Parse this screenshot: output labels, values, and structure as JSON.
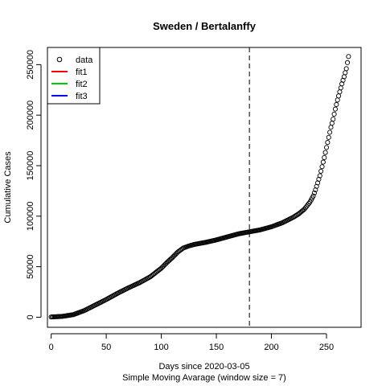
{
  "chart_data": {
    "type": "scatter",
    "title": "Sweden / Bertalanffy",
    "xlabel": "Days since 2020-03-05",
    "xsublabel": "Simple Moving Avarage (window size = 7)",
    "ylabel": "Cumulative Cases",
    "xlim": [
      -3.4,
      281.4
    ],
    "ylim": [
      -10000,
      267000
    ],
    "x_ticks": [
      0,
      50,
      100,
      150,
      200,
      250
    ],
    "y_ticks": [
      0,
      50000,
      100000,
      150000,
      200000,
      250000
    ],
    "vline_x": 180,
    "legend": {
      "placement": "top-left",
      "entries": [
        {
          "label": "data",
          "symbol": "circle",
          "color": "#000000"
        },
        {
          "label": "fit1",
          "symbol": "line",
          "color": "#ff0000"
        },
        {
          "label": "fit2",
          "symbol": "line",
          "color": "#00cd00"
        },
        {
          "label": "fit3",
          "symbol": "line",
          "color": "#0000ff"
        }
      ]
    },
    "anchors": [
      [
        0,
        200
      ],
      [
        10,
        800
      ],
      [
        20,
        2500
      ],
      [
        30,
        6500
      ],
      [
        40,
        12000
      ],
      [
        50,
        17500
      ],
      [
        60,
        23500
      ],
      [
        70,
        29000
      ],
      [
        80,
        34000
      ],
      [
        90,
        40000
      ],
      [
        100,
        48500
      ],
      [
        105,
        54000
      ],
      [
        110,
        59000
      ],
      [
        115,
        64500
      ],
      [
        120,
        68500
      ],
      [
        125,
        70500
      ],
      [
        130,
        72000
      ],
      [
        140,
        74000
      ],
      [
        150,
        76500
      ],
      [
        160,
        79500
      ],
      [
        170,
        82500
      ],
      [
        180,
        84500
      ],
      [
        190,
        86500
      ],
      [
        200,
        89500
      ],
      [
        210,
        93500
      ],
      [
        220,
        99000
      ],
      [
        225,
        102500
      ],
      [
        230,
        107000
      ],
      [
        235,
        114000
      ],
      [
        238,
        120000
      ],
      [
        240,
        126000
      ],
      [
        242,
        133000
      ],
      [
        244,
        140000
      ],
      [
        246,
        149000
      ],
      [
        248,
        158000
      ],
      [
        250,
        168000
      ],
      [
        252,
        178000
      ],
      [
        254,
        188000
      ],
      [
        256,
        196000
      ],
      [
        258,
        206000
      ],
      [
        260,
        215000
      ],
      [
        262,
        223000
      ],
      [
        264,
        231000
      ],
      [
        266,
        238000
      ],
      [
        268,
        246000
      ],
      [
        270,
        258000
      ]
    ]
  }
}
